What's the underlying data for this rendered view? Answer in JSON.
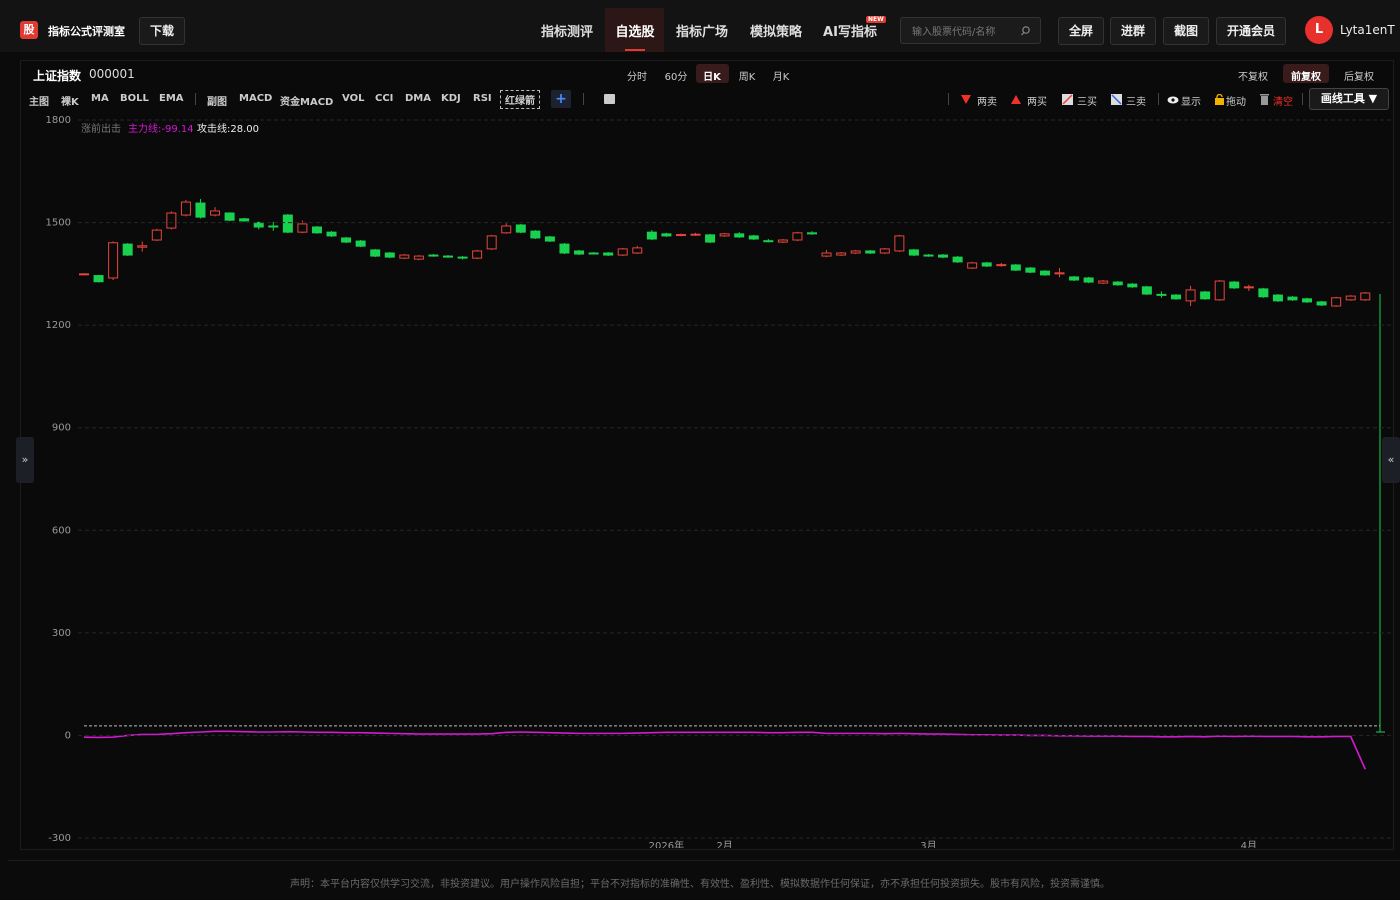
{
  "header": {
    "logo": "股",
    "title": "指标公式评测室",
    "download": "下载",
    "nav": [
      "指标测评",
      "自选股",
      "指标广场",
      "模拟策略",
      "AI写指标"
    ],
    "badge": "NEW",
    "search_placeholder": "输入股票代码/名称",
    "buttons": [
      "全屏",
      "进群",
      "截图",
      "开通会员"
    ],
    "avatar": "L",
    "user": "Lyta1enT"
  },
  "panel": {
    "name": "上证指数",
    "code": "000001",
    "periods": [
      "分时",
      "60分",
      "日K",
      "周K",
      "月K"
    ],
    "adjust": [
      "不复权",
      "前复权",
      "后复权"
    ],
    "indicators": [
      "主图",
      "裸K",
      "MA",
      "BOLL",
      "EMA",
      "副图",
      "MACD",
      "资金MACD",
      "VOL",
      "CCI",
      "DMA",
      "KDJ",
      "RSI",
      "红绿箭"
    ],
    "add": "+",
    "tools": [
      "两卖",
      "两买",
      "三买",
      "三卖",
      "显示",
      "拖动",
      "清空"
    ],
    "draw_tool": "画线工具 ▼",
    "expand_left": "»",
    "expand_right": "«"
  },
  "chart_data": {
    "type": "candlestick",
    "legend": [
      "涨前出击",
      "主力线:-99.14",
      "攻击线:28.00"
    ],
    "categories": [
      null,
      null,
      null,
      null,
      null,
      null,
      null,
      null,
      null,
      null,
      null,
      null,
      null,
      null,
      null,
      null,
      null,
      null,
      null,
      null,
      null,
      null,
      null,
      null,
      null,
      null,
      null,
      null,
      null,
      null,
      null,
      null,
      null,
      null,
      null,
      null,
      null,
      null,
      null,
      null,
      "2026年",
      null,
      null,
      null,
      "2月",
      null,
      null,
      null,
      null,
      null,
      null,
      null,
      null,
      null,
      null,
      null,
      null,
      null,
      "3月",
      null,
      null,
      null,
      null,
      null,
      null,
      null,
      null,
      null,
      null,
      null,
      null,
      null,
      null,
      null,
      null,
      null,
      null,
      null,
      null,
      null,
      "4月",
      null,
      null,
      null,
      null,
      null,
      null,
      null,
      null
    ],
    "open": [
      1348,
      1345,
      1338,
      1437,
      1428,
      1449,
      1484,
      1522,
      1557,
      1522,
      1528,
      1511,
      1500,
      1490,
      1522,
      1472,
      1487,
      1472,
      1455,
      1446,
      1420,
      1411,
      1396,
      1393,
      1405,
      1402,
      1399,
      1396,
      1423,
      1470,
      1493,
      1475,
      1458,
      1437,
      1417,
      1411,
      1411,
      1405,
      1411,
      1472,
      1467,
      1463,
      1464,
      1464,
      1461,
      1467,
      1461,
      1447,
      1443,
      1449,
      1470,
      1402,
      1405,
      1411,
      1417,
      1411,
      1417,
      1420,
      1405,
      1405,
      1399,
      1367,
      1382,
      1374,
      1376,
      1367,
      1358,
      1350,
      1341,
      1338,
      1323,
      1326,
      1320,
      1312,
      1290,
      1288,
      1271,
      1297,
      1274,
      1326,
      1310,
      1306,
      1288,
      1282,
      1277,
      1268,
      1256,
      1274,
      1274
    ],
    "high": [
      1352,
      1347,
      1445,
      1440,
      1445,
      1482,
      1533,
      1566,
      1569,
      1545,
      1530,
      1514,
      1503,
      1502,
      1525,
      1506,
      1490,
      1475,
      1458,
      1449,
      1423,
      1414,
      1408,
      1405,
      1408,
      1405,
      1402,
      1420,
      1464,
      1498,
      1496,
      1478,
      1461,
      1440,
      1420,
      1414,
      1414,
      1426,
      1432,
      1478,
      1470,
      1468,
      1470,
      1467,
      1470,
      1472,
      1464,
      1452,
      1452,
      1473,
      1475,
      1420,
      1414,
      1420,
      1420,
      1426,
      1464,
      1423,
      1408,
      1408,
      1402,
      1385,
      1385,
      1382,
      1379,
      1370,
      1361,
      1367,
      1344,
      1341,
      1332,
      1329,
      1323,
      1315,
      1299,
      1291,
      1315,
      1300,
      1332,
      1329,
      1318,
      1309,
      1291,
      1285,
      1280,
      1271,
      1283,
      1288,
      1297
    ],
    "low": [
      1346,
      1325,
      1332,
      1402,
      1415,
      1446,
      1480,
      1518,
      1512,
      1518,
      1504,
      1502,
      1480,
      1476,
      1469,
      1469,
      1467,
      1458,
      1440,
      1428,
      1399,
      1396,
      1393,
      1390,
      1400,
      1397,
      1392,
      1393,
      1420,
      1467,
      1469,
      1452,
      1443,
      1408,
      1405,
      1407,
      1402,
      1402,
      1408,
      1449,
      1458,
      1460,
      1461,
      1440,
      1458,
      1455,
      1449,
      1442,
      1440,
      1446,
      1464,
      1399,
      1402,
      1408,
      1408,
      1408,
      1414,
      1402,
      1400,
      1396,
      1382,
      1364,
      1370,
      1371,
      1358,
      1352,
      1344,
      1340,
      1329,
      1323,
      1320,
      1315,
      1309,
      1288,
      1280,
      1274,
      1256,
      1274,
      1271,
      1306,
      1300,
      1280,
      1268,
      1271,
      1265,
      1256,
      1253,
      1271,
      1271
    ],
    "close": [
      1350,
      1327,
      1441,
      1405,
      1432,
      1478,
      1528,
      1560,
      1516,
      1534,
      1507,
      1505,
      1487,
      1489,
      1472,
      1496,
      1470,
      1461,
      1443,
      1431,
      1402,
      1399,
      1405,
      1402,
      1403,
      1400,
      1397,
      1417,
      1461,
      1490,
      1472,
      1455,
      1446,
      1411,
      1408,
      1410,
      1405,
      1423,
      1426,
      1452,
      1461,
      1465,
      1466,
      1443,
      1467,
      1458,
      1452,
      1445,
      1449,
      1470,
      1467,
      1411,
      1411,
      1417,
      1411,
      1423,
      1461,
      1405,
      1403,
      1399,
      1385,
      1382,
      1373,
      1377,
      1361,
      1355,
      1347,
      1353,
      1332,
      1326,
      1329,
      1318,
      1312,
      1291,
      1288,
      1277,
      1303,
      1277,
      1329,
      1309,
      1312,
      1283,
      1271,
      1274,
      1268,
      1259,
      1280,
      1285,
      1294
    ],
    "main_force": [
      -5,
      -6,
      -5,
      0,
      3,
      3,
      5,
      8,
      10,
      12,
      12,
      11,
      10,
      10,
      11,
      10,
      9,
      9,
      8,
      8,
      7,
      6,
      5,
      4,
      4,
      4,
      4,
      4,
      5,
      9,
      10,
      9,
      8,
      7,
      6,
      6,
      6,
      6,
      7,
      8,
      9,
      9,
      9,
      9,
      9,
      9,
      9,
      8,
      8,
      9,
      9,
      6,
      6,
      6,
      6,
      5,
      6,
      5,
      4,
      4,
      3,
      2,
      2,
      1,
      1,
      0,
      0,
      -1,
      -1,
      -2,
      -2,
      -2,
      -3,
      -3,
      -4,
      -4,
      -3,
      -4,
      -2,
      -3,
      -2,
      -3,
      -3,
      -3,
      -4,
      -4,
      -3,
      -3,
      -99.14
    ],
    "attack": 28,
    "up_color": "#e8453c",
    "down_color": "#19d14f",
    "line_color": "#d21ad2",
    "ylim": [
      -300,
      1800
    ],
    "yticks": [
      -300,
      0,
      300,
      600,
      900,
      1200,
      1500,
      1800
    ],
    "grid": true
  },
  "footer": "声明：本平台内容仅供学习交流，非投资建议。用户操作风险自担；平台不对指标的准确性、有效性、盈利性、模拟数据作任何保证，亦不承担任何投资损失。股市有风险，投资需谨慎。"
}
